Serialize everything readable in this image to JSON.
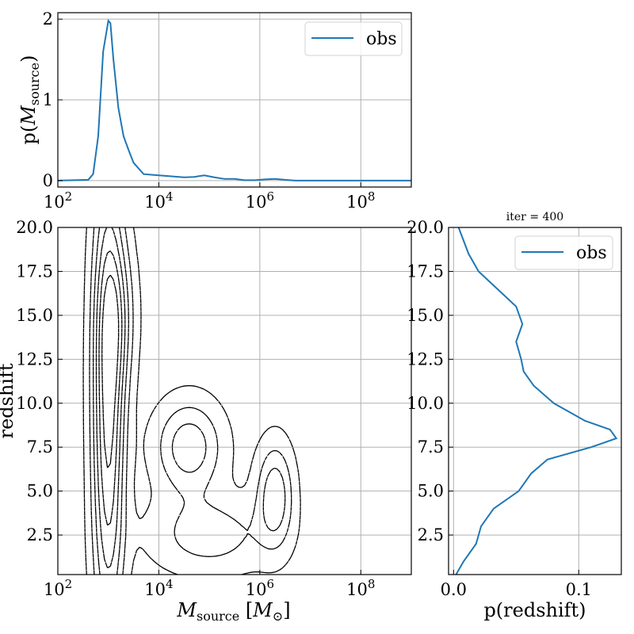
{
  "chart_data": [
    {
      "id": "top",
      "type": "line",
      "xscale": "log",
      "xlim": [
        100,
        1000000000
      ],
      "ylim": [
        -0.08,
        2.08
      ],
      "xticks": [
        100,
        10000,
        1000000,
        100000000
      ],
      "xtick_labels": [
        "10^2",
        "10^4",
        "10^6",
        "10^8"
      ],
      "yticks": [
        0,
        1,
        2
      ],
      "ytick_labels": [
        "0",
        "1",
        "2"
      ],
      "ylabel": "p(M_source)",
      "grid": true,
      "legend": {
        "position": "top-right",
        "entries": [
          "obs"
        ]
      },
      "series": [
        {
          "name": "obs",
          "color": "#1f77b4",
          "x": [
            100,
            400,
            500,
            630,
            790,
            1000,
            1100,
            1260,
            1580,
            2000,
            2510,
            3160,
            5000,
            7940,
            12600,
            20000,
            31600,
            50100,
            79400,
            126000,
            200000,
            316000,
            501000,
            794000,
            1260000,
            2000000,
            3160000,
            5010000,
            10000000,
            100000000,
            1000000000
          ],
          "y": [
            0,
            0.01,
            0.08,
            0.55,
            1.6,
            1.98,
            1.95,
            1.5,
            0.9,
            0.55,
            0.38,
            0.22,
            0.08,
            0.07,
            0.06,
            0.05,
            0.04,
            0.045,
            0.065,
            0.04,
            0.02,
            0.02,
            0.005,
            0.005,
            0.015,
            0.02,
            0.01,
            0,
            0,
            0,
            0
          ]
        }
      ]
    },
    {
      "id": "main",
      "type": "contour",
      "xscale": "log",
      "xlim": [
        100,
        1000000000
      ],
      "ylim": [
        0.25,
        20
      ],
      "xticks": [
        100,
        10000,
        1000000,
        100000000
      ],
      "xtick_labels": [
        "10^2",
        "10^4",
        "10^6",
        "10^8"
      ],
      "yticks": [
        2.5,
        5.0,
        7.5,
        10.0,
        12.5,
        15.0,
        17.5,
        20.0
      ],
      "ytick_labels": [
        "2.5",
        "5.0",
        "7.5",
        "10.0",
        "12.5",
        "15.0",
        "17.5",
        "20.0"
      ],
      "xlabel": "M_source [M_sun]",
      "ylabel": "redshift",
      "grid": true,
      "levels": 6,
      "linestyle": "dashed",
      "clusters": [
        {
          "x_log10": 3.0,
          "y": 10.0,
          "sx": 0.22,
          "sy": 9.0,
          "w": 1.0
        },
        {
          "x_log10": 3.2,
          "y": 15.0,
          "sx": 0.25,
          "sy": 3.0,
          "w": 0.35
        },
        {
          "x_log10": 4.6,
          "y": 7.5,
          "sx": 0.45,
          "sy": 1.8,
          "w": 0.55
        },
        {
          "x_log10": 6.3,
          "y": 4.8,
          "sx": 0.25,
          "sy": 2.0,
          "w": 0.55
        },
        {
          "x_log10": 5.0,
          "y": 2.5,
          "sx": 0.8,
          "sy": 1.5,
          "w": 0.35
        }
      ]
    },
    {
      "id": "right",
      "type": "line",
      "orientation": "vertical",
      "title": "iter = 400",
      "xlim": [
        -0.004,
        0.134
      ],
      "ylim": [
        0.25,
        20
      ],
      "xticks": [
        0.0,
        0.1
      ],
      "xtick_labels": [
        "0.0",
        "0.1"
      ],
      "yticks": [
        2.5,
        5.0,
        7.5,
        10.0,
        12.5,
        15.0,
        17.5,
        20.0
      ],
      "ytick_labels": [
        "2.5",
        "5.0",
        "7.5",
        "10.0",
        "12.5",
        "15.0",
        "17.5",
        "20.0"
      ],
      "xlabel": "p(redshift)",
      "grid": true,
      "legend": {
        "position": "top-right",
        "entries": [
          "obs"
        ]
      },
      "series": [
        {
          "name": "obs",
          "color": "#1f77b4",
          "y": [
            0.25,
            1.0,
            2.0,
            3.0,
            4.0,
            5.0,
            6.0,
            6.8,
            7.5,
            8.0,
            8.5,
            9.0,
            10.0,
            11.0,
            11.8,
            12.5,
            13.5,
            14.5,
            15.5,
            16.5,
            17.5,
            18.5,
            20.0
          ],
          "x": [
            0.002,
            0.008,
            0.018,
            0.022,
            0.032,
            0.052,
            0.062,
            0.075,
            0.11,
            0.13,
            0.125,
            0.105,
            0.08,
            0.064,
            0.056,
            0.054,
            0.05,
            0.055,
            0.05,
            0.035,
            0.02,
            0.012,
            0.004
          ]
        }
      ]
    }
  ]
}
